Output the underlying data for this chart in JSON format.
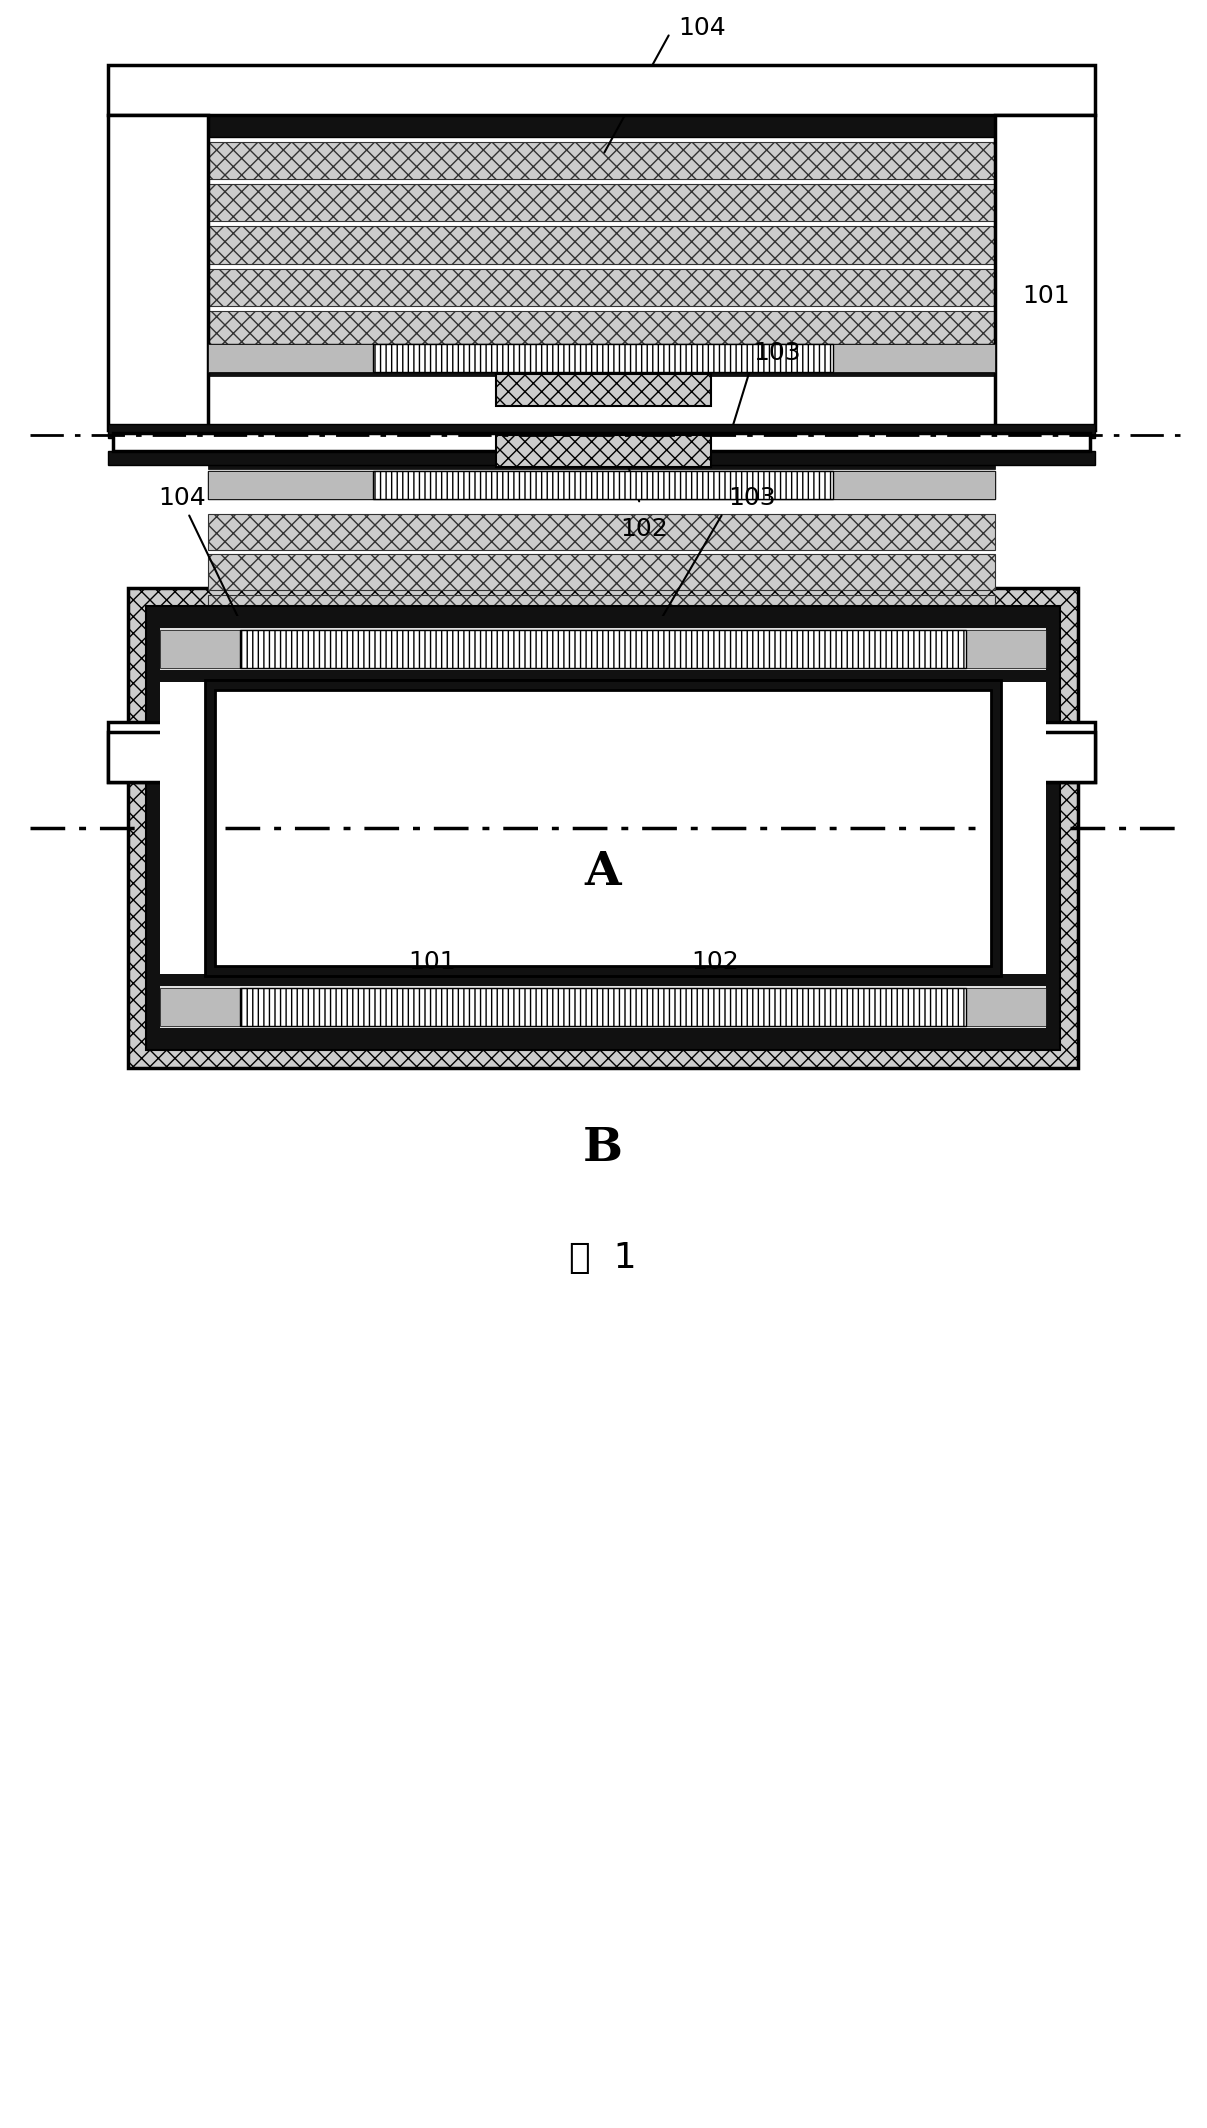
{
  "fig_width": 12.07,
  "fig_height": 21.28,
  "bg_color": "#ffffff",
  "label_A": "A",
  "label_B": "B",
  "label_fig": "图  1"
}
